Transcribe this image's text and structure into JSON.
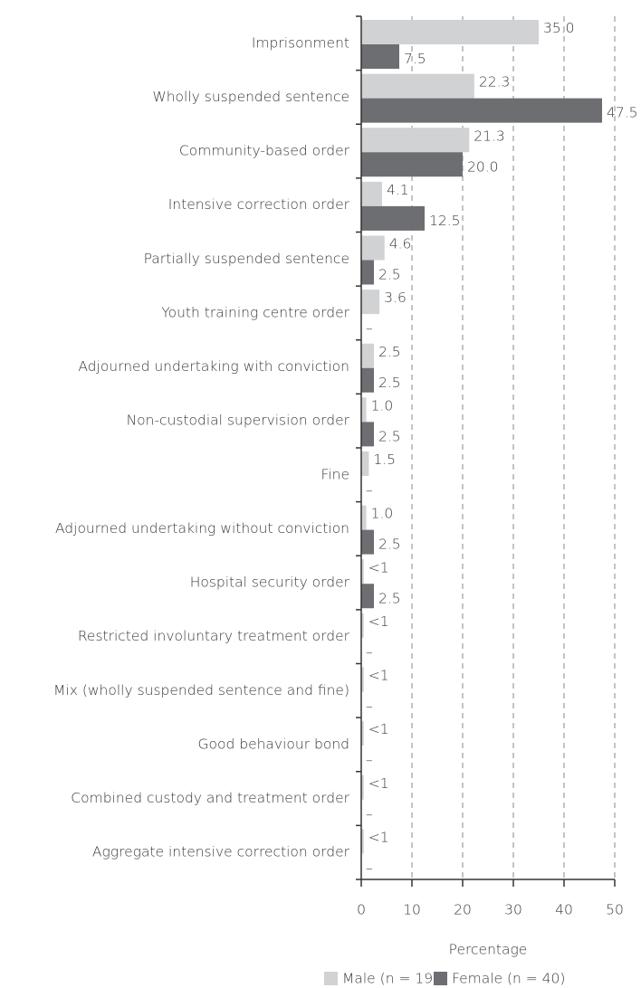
{
  "chart_data": {
    "type": "hbar",
    "categories": [
      "Imprisonment",
      "Wholly suspended sentence",
      "Community-based order",
      "Intensive correction order",
      "Partially suspended sentence",
      "Youth training centre order",
      "Adjourned undertaking with conviction",
      "Non-custodial supervision order",
      "Fine",
      "Adjourned undertaking without conviction",
      "Hospital security order",
      "Restricted involuntary treatment order",
      "Mix (wholly suspended sentence and fine)",
      "Good behaviour bond",
      "Combined custody and treatment order",
      "Aggregate intensive correction order"
    ],
    "series": [
      {
        "name": "Male (n = 197)",
        "color": "#d1d2d4",
        "values": [
          35.0,
          22.3,
          21.3,
          4.1,
          4.6,
          3.6,
          2.5,
          1.0,
          1.5,
          1.0,
          0.5,
          0.5,
          0.5,
          0.5,
          0.5,
          0.5
        ],
        "value_labels": [
          "35.0",
          "22.3",
          "21.3",
          "4.1",
          "4.6",
          "3.6",
          "2.5",
          "1.0",
          "1.5",
          "1.0",
          "<1",
          "<1",
          "<1",
          "<1",
          "<1",
          "<1"
        ]
      },
      {
        "name": "Female (n = 40)",
        "color": "#6d6e71",
        "values": [
          7.5,
          47.5,
          20.0,
          12.5,
          2.5,
          null,
          2.5,
          2.5,
          null,
          2.5,
          2.5,
          null,
          null,
          null,
          null,
          null
        ],
        "value_labels": [
          "7.5",
          "47.5",
          "20.0",
          "12.5",
          "2.5",
          "–",
          "2.5",
          "2.5",
          "–",
          "2.5",
          "2.5",
          "–",
          "–",
          "–",
          "–",
          "–"
        ]
      }
    ],
    "xlabel": "Percentage",
    "xlim": [
      0,
      50
    ],
    "xticks": [
      0,
      10,
      20,
      30,
      40,
      50
    ],
    "grid": true,
    "legend": "bottom"
  }
}
